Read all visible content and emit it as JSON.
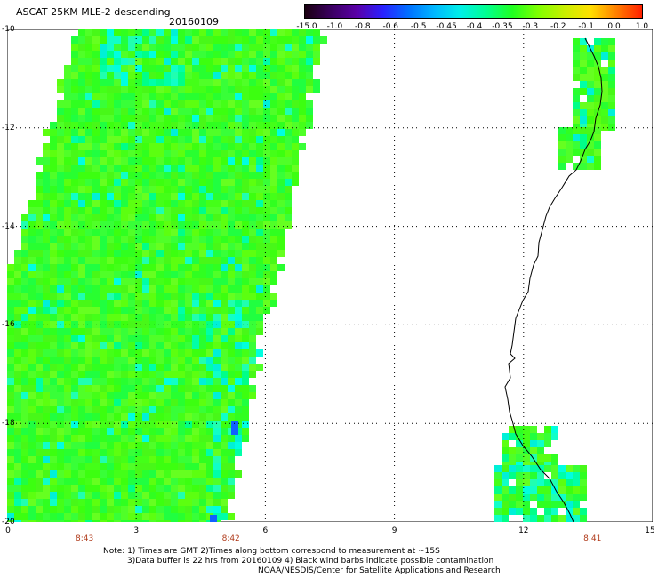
{
  "header": {
    "title": "ASCAT 25KM MLE-2 descending",
    "date": "20160109"
  },
  "colorbar": {
    "colors": [
      "#1a0010",
      "#3a0060",
      "#5a00a8",
      "#2a20ff",
      "#0070ff",
      "#00b8ff",
      "#00f0e8",
      "#00ff90",
      "#20ff20",
      "#80ff00",
      "#c8f000",
      "#ffe000",
      "#ff8000",
      "#ff2000"
    ],
    "labels": [
      "-15.0",
      "-1.0",
      "-0.8",
      "-0.6",
      "-0.5",
      "-0.45",
      "-0.4",
      "-0.35",
      "-0.3",
      "-0.2",
      "-0.1",
      "0.0",
      "1.0"
    ]
  },
  "map": {
    "lon_min": 0,
    "lon_max": 15,
    "lat_top": -10,
    "lat_bottom": -20,
    "x_ticks": [
      "0",
      "3",
      "6",
      "9",
      "12",
      "15"
    ],
    "y_ticks": [
      "-10",
      "-12",
      "-14",
      "-16",
      "-18",
      "-20"
    ],
    "grid": "dotted",
    "pass_times": [
      "8:43",
      "8:42",
      "8:41"
    ],
    "pass_time_lons": [
      1.8,
      5.2,
      13.6
    ],
    "swaths": [
      {
        "name": "western swath",
        "lon_range": [
          0,
          7.5
        ]
      },
      {
        "name": "northern coastal patch",
        "lat_range": [
          -10.2,
          -12.8
        ],
        "lon_range": [
          12.8,
          14.0
        ]
      },
      {
        "name": "southern coastal patch",
        "lat_range": [
          -18.0,
          -20.0
        ],
        "lon_range": [
          11.3,
          13.4
        ]
      }
    ]
  },
  "notes": [
    "Note: 1) Times are GMT 2)Times along bottom correspond to measurement at ~15S",
    "3)Data buffer is 22 hrs from 20160109 4) Black wind barbs indicate possible contamination",
    "NOAA/NESDIS/Center for Satellite Applications and Research"
  ]
}
